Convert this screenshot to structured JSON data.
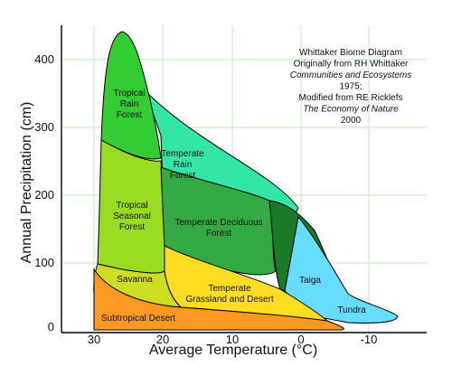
{
  "chart_data": {
    "type": "area",
    "title_lines": [
      {
        "text": "Whittaker Biome Diagram",
        "italic": false
      },
      {
        "text": "Originally from RH Whittaker",
        "italic": false
      },
      {
        "text": "Communities and Ecosystems",
        "italic": true
      },
      {
        "text": "1975;",
        "italic": false
      },
      {
        "text": "Modified from RE Ricklefs",
        "italic": false
      },
      {
        "text": "The Economy of Nature",
        "italic": true
      },
      {
        "text": "2000",
        "italic": false
      }
    ],
    "xlabel": "Average Temperature (°C)",
    "ylabel": "Annual Precipitation (cm)",
    "x_ticks": [
      "30",
      "20",
      "10",
      "0",
      "-10"
    ],
    "y_ticks": [
      "0",
      "100",
      "200",
      "300",
      "400"
    ],
    "xlim": [
      35,
      -15
    ],
    "ylim": [
      -8,
      445
    ],
    "grid": true,
    "biomes": [
      {
        "name": "Tropical Rain Forest",
        "lines": [
          "Tropical",
          "Rain",
          "Forest"
        ],
        "color": "#33cc33"
      },
      {
        "name": "Temperate Rain Forest",
        "lines": [
          "Temperate",
          "Rain",
          "Forest"
        ],
        "color": "#33e6a6"
      },
      {
        "name": "Tropical Seasonal Forest",
        "lines": [
          "Tropical",
          "Seasonal",
          "Forest"
        ],
        "color": "#99dd22"
      },
      {
        "name": "Temperate Deciduous Forest",
        "lines": [
          "Temperate Deciduous",
          "Forest"
        ],
        "color": "#33aa44"
      },
      {
        "name": "Taiga",
        "lines": [
          "Taiga"
        ],
        "color": "#1a7a2a"
      },
      {
        "name": "Savanna",
        "lines": [
          "Savanna"
        ],
        "color": "#ccdd22"
      },
      {
        "name": "Temperate Grassland and Desert",
        "lines": [
          "Temperate",
          "Grassland and Desert"
        ],
        "color": "#ffdd22"
      },
      {
        "name": "Tundra",
        "lines": [
          "Tundra"
        ],
        "color": "#66ddff"
      },
      {
        "name": "Subtropical Desert",
        "lines": [
          "Subtropical Desert"
        ],
        "color": "#ff9922"
      }
    ]
  }
}
